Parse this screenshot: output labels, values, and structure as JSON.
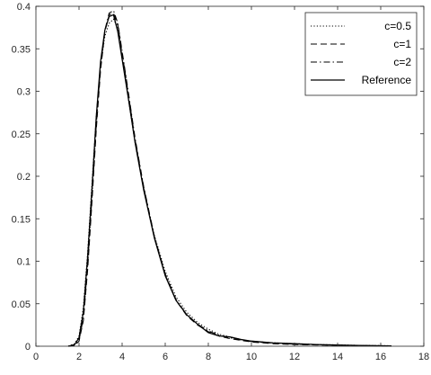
{
  "chart_data": {
    "type": "line",
    "title": "",
    "xlabel": "",
    "ylabel": "",
    "xlim": [
      0,
      18
    ],
    "ylim": [
      0,
      0.4
    ],
    "x_ticks": [
      0,
      2,
      4,
      6,
      8,
      10,
      12,
      14,
      16,
      18
    ],
    "y_ticks": [
      0,
      0.05,
      0.1,
      0.15,
      0.2,
      0.25,
      0.3,
      0.35,
      0.4
    ],
    "x_tick_labels": [
      "0",
      "2",
      "4",
      "6",
      "8",
      "10",
      "12",
      "14",
      "16",
      "18"
    ],
    "y_tick_labels": [
      "0",
      "0.05",
      "0.1",
      "0.15",
      "0.2",
      "0.25",
      "0.3",
      "0.35",
      "0.4"
    ],
    "grid": false,
    "legend_position": "top-right",
    "series": [
      {
        "name": "c=0.5",
        "style": "dotted",
        "color": "#000000",
        "x": [
          1.5,
          1.8,
          2.0,
          2.2,
          2.4,
          2.6,
          2.8,
          3.0,
          3.2,
          3.4,
          3.6,
          3.8,
          4.0,
          4.3,
          4.6,
          5.0,
          5.5,
          6.0,
          6.5,
          7.0,
          7.5,
          8.0,
          8.5,
          9.0,
          9.5,
          10.0,
          11.0,
          12.0,
          13.0,
          14.0,
          15.0,
          16.5
        ],
        "y": [
          0.0,
          0.003,
          0.012,
          0.045,
          0.11,
          0.19,
          0.27,
          0.33,
          0.365,
          0.38,
          0.385,
          0.375,
          0.34,
          0.29,
          0.24,
          0.185,
          0.13,
          0.088,
          0.058,
          0.04,
          0.028,
          0.02,
          0.014,
          0.011,
          0.008,
          0.006,
          0.004,
          0.003,
          0.002,
          0.0015,
          0.001,
          0.0005
        ]
      },
      {
        "name": "c=1",
        "style": "dashed",
        "color": "#000000",
        "x": [
          1.5,
          1.8,
          2.0,
          2.2,
          2.4,
          2.6,
          2.8,
          3.0,
          3.2,
          3.4,
          3.6,
          3.8,
          4.0,
          4.3,
          4.6,
          5.0,
          5.5,
          6.0,
          6.5,
          7.0,
          7.5,
          8.0,
          8.5,
          9.0,
          9.5,
          10.0,
          11.0,
          12.0,
          13.0,
          14.0,
          15.0,
          16.5
        ],
        "y": [
          0.0,
          0.001,
          0.006,
          0.03,
          0.09,
          0.17,
          0.255,
          0.325,
          0.37,
          0.39,
          0.392,
          0.378,
          0.345,
          0.295,
          0.243,
          0.187,
          0.128,
          0.084,
          0.054,
          0.036,
          0.025,
          0.017,
          0.012,
          0.009,
          0.007,
          0.005,
          0.003,
          0.002,
          0.0015,
          0.001,
          0.0007,
          0.0003
        ]
      },
      {
        "name": "c=2",
        "style": "dashdot",
        "color": "#000000",
        "x": [
          1.5,
          1.8,
          2.0,
          2.2,
          2.4,
          2.6,
          2.8,
          3.0,
          3.2,
          3.4,
          3.6,
          3.8,
          4.0,
          4.3,
          4.6,
          5.0,
          5.5,
          6.0,
          6.5,
          7.0,
          7.5,
          8.0,
          8.5,
          9.0,
          9.5,
          10.0,
          11.0,
          12.0,
          13.0,
          14.0,
          15.0,
          16.5
        ],
        "y": [
          0.0,
          0.001,
          0.007,
          0.033,
          0.095,
          0.175,
          0.26,
          0.33,
          0.372,
          0.392,
          0.395,
          0.38,
          0.347,
          0.297,
          0.245,
          0.188,
          0.129,
          0.085,
          0.055,
          0.037,
          0.026,
          0.018,
          0.013,
          0.01,
          0.0075,
          0.0055,
          0.0035,
          0.0025,
          0.0017,
          0.0012,
          0.0008,
          0.0004
        ]
      },
      {
        "name": "Reference",
        "style": "solid",
        "color": "#000000",
        "x": [
          1.5,
          1.8,
          2.0,
          2.2,
          2.4,
          2.6,
          2.8,
          3.0,
          3.2,
          3.4,
          3.6,
          3.8,
          4.0,
          4.3,
          4.6,
          5.0,
          5.5,
          6.0,
          6.5,
          7.0,
          7.5,
          8.0,
          8.5,
          9.0,
          9.5,
          10.0,
          11.0,
          12.0,
          13.0,
          14.0,
          15.0,
          16.5
        ],
        "y": [
          0.0,
          0.002,
          0.01,
          0.04,
          0.105,
          0.185,
          0.27,
          0.335,
          0.372,
          0.388,
          0.39,
          0.37,
          0.338,
          0.29,
          0.24,
          0.184,
          0.127,
          0.083,
          0.054,
          0.037,
          0.026,
          0.016,
          0.012,
          0.011,
          0.008,
          0.006,
          0.004,
          0.003,
          0.002,
          0.0014,
          0.0009,
          0.0004
        ]
      }
    ]
  }
}
